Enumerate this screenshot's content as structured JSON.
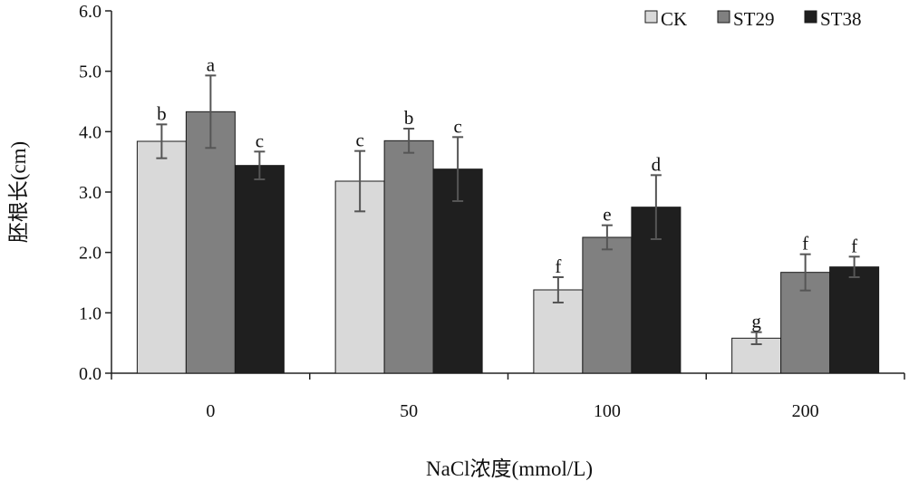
{
  "chart_data": {
    "type": "bar",
    "title": "",
    "xlabel": "NaCl浓度(mmol/L)",
    "ylabel": "胚根长(cm)",
    "ylim": [
      0,
      6
    ],
    "yticks": [
      "0.0",
      "1.0",
      "2.0",
      "3.0",
      "4.0",
      "5.0",
      "6.0"
    ],
    "categories": [
      "0",
      "50",
      "100",
      "200"
    ],
    "legend_position": "top-right",
    "series": [
      {
        "name": "CK",
        "color": "#d9d9d9",
        "values": [
          3.84,
          3.18,
          1.38,
          0.58
        ],
        "errors": [
          0.28,
          0.5,
          0.21,
          0.1
        ],
        "letters": [
          "b",
          "c",
          "f",
          "g"
        ]
      },
      {
        "name": "ST29",
        "color": "#808080",
        "values": [
          4.33,
          3.85,
          2.25,
          1.67
        ],
        "errors": [
          0.6,
          0.2,
          0.2,
          0.3
        ],
        "letters": [
          "a",
          "b",
          "e",
          "f"
        ]
      },
      {
        "name": "ST38",
        "color": "#1f1f1f",
        "values": [
          3.44,
          3.38,
          2.75,
          1.76
        ],
        "errors": [
          0.23,
          0.53,
          0.53,
          0.17
        ],
        "letters": [
          "c",
          "c",
          "d",
          "f"
        ]
      }
    ]
  }
}
